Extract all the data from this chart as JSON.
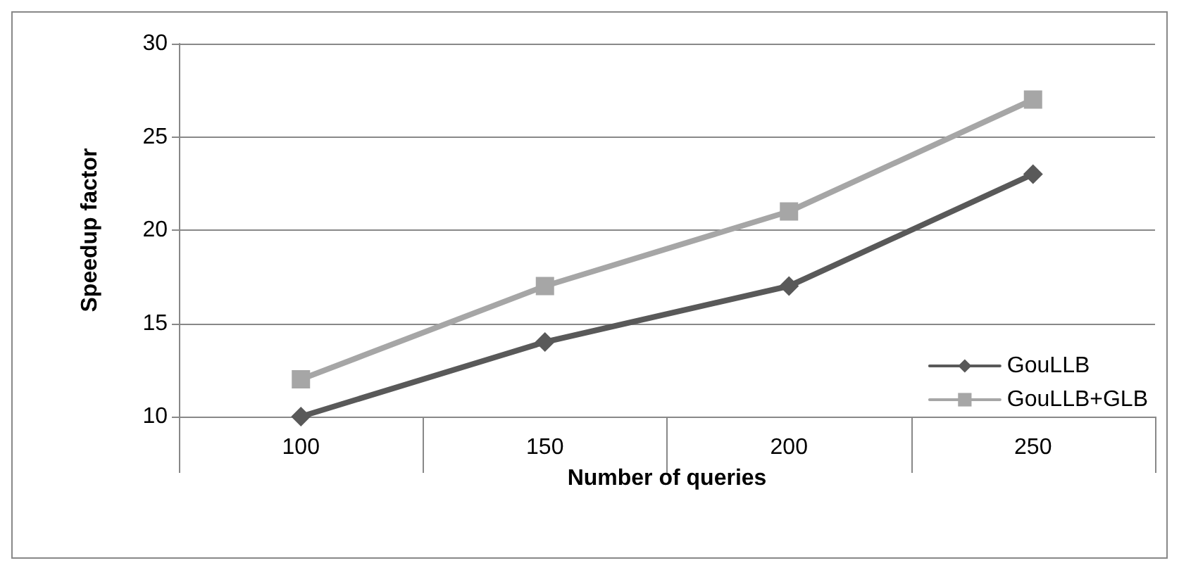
{
  "chart_data": {
    "type": "line",
    "xlabel": "Number of queries",
    "ylabel": "Speedup factor",
    "categories": [
      "100",
      "150",
      "200",
      "250"
    ],
    "series": [
      {
        "name": "GouLLB",
        "color": "#595959",
        "values": [
          10,
          14,
          17,
          23
        ],
        "marker": "diamond"
      },
      {
        "name": "GouLLB+GLB",
        "color": "#a6a6a6",
        "values": [
          12,
          17,
          21,
          27
        ],
        "marker": "square"
      }
    ],
    "ylim": [
      10,
      30
    ],
    "yticks": [
      10,
      15,
      20,
      25,
      30
    ],
    "grid": "y",
    "legend": "right",
    "line_style": "solid"
  }
}
